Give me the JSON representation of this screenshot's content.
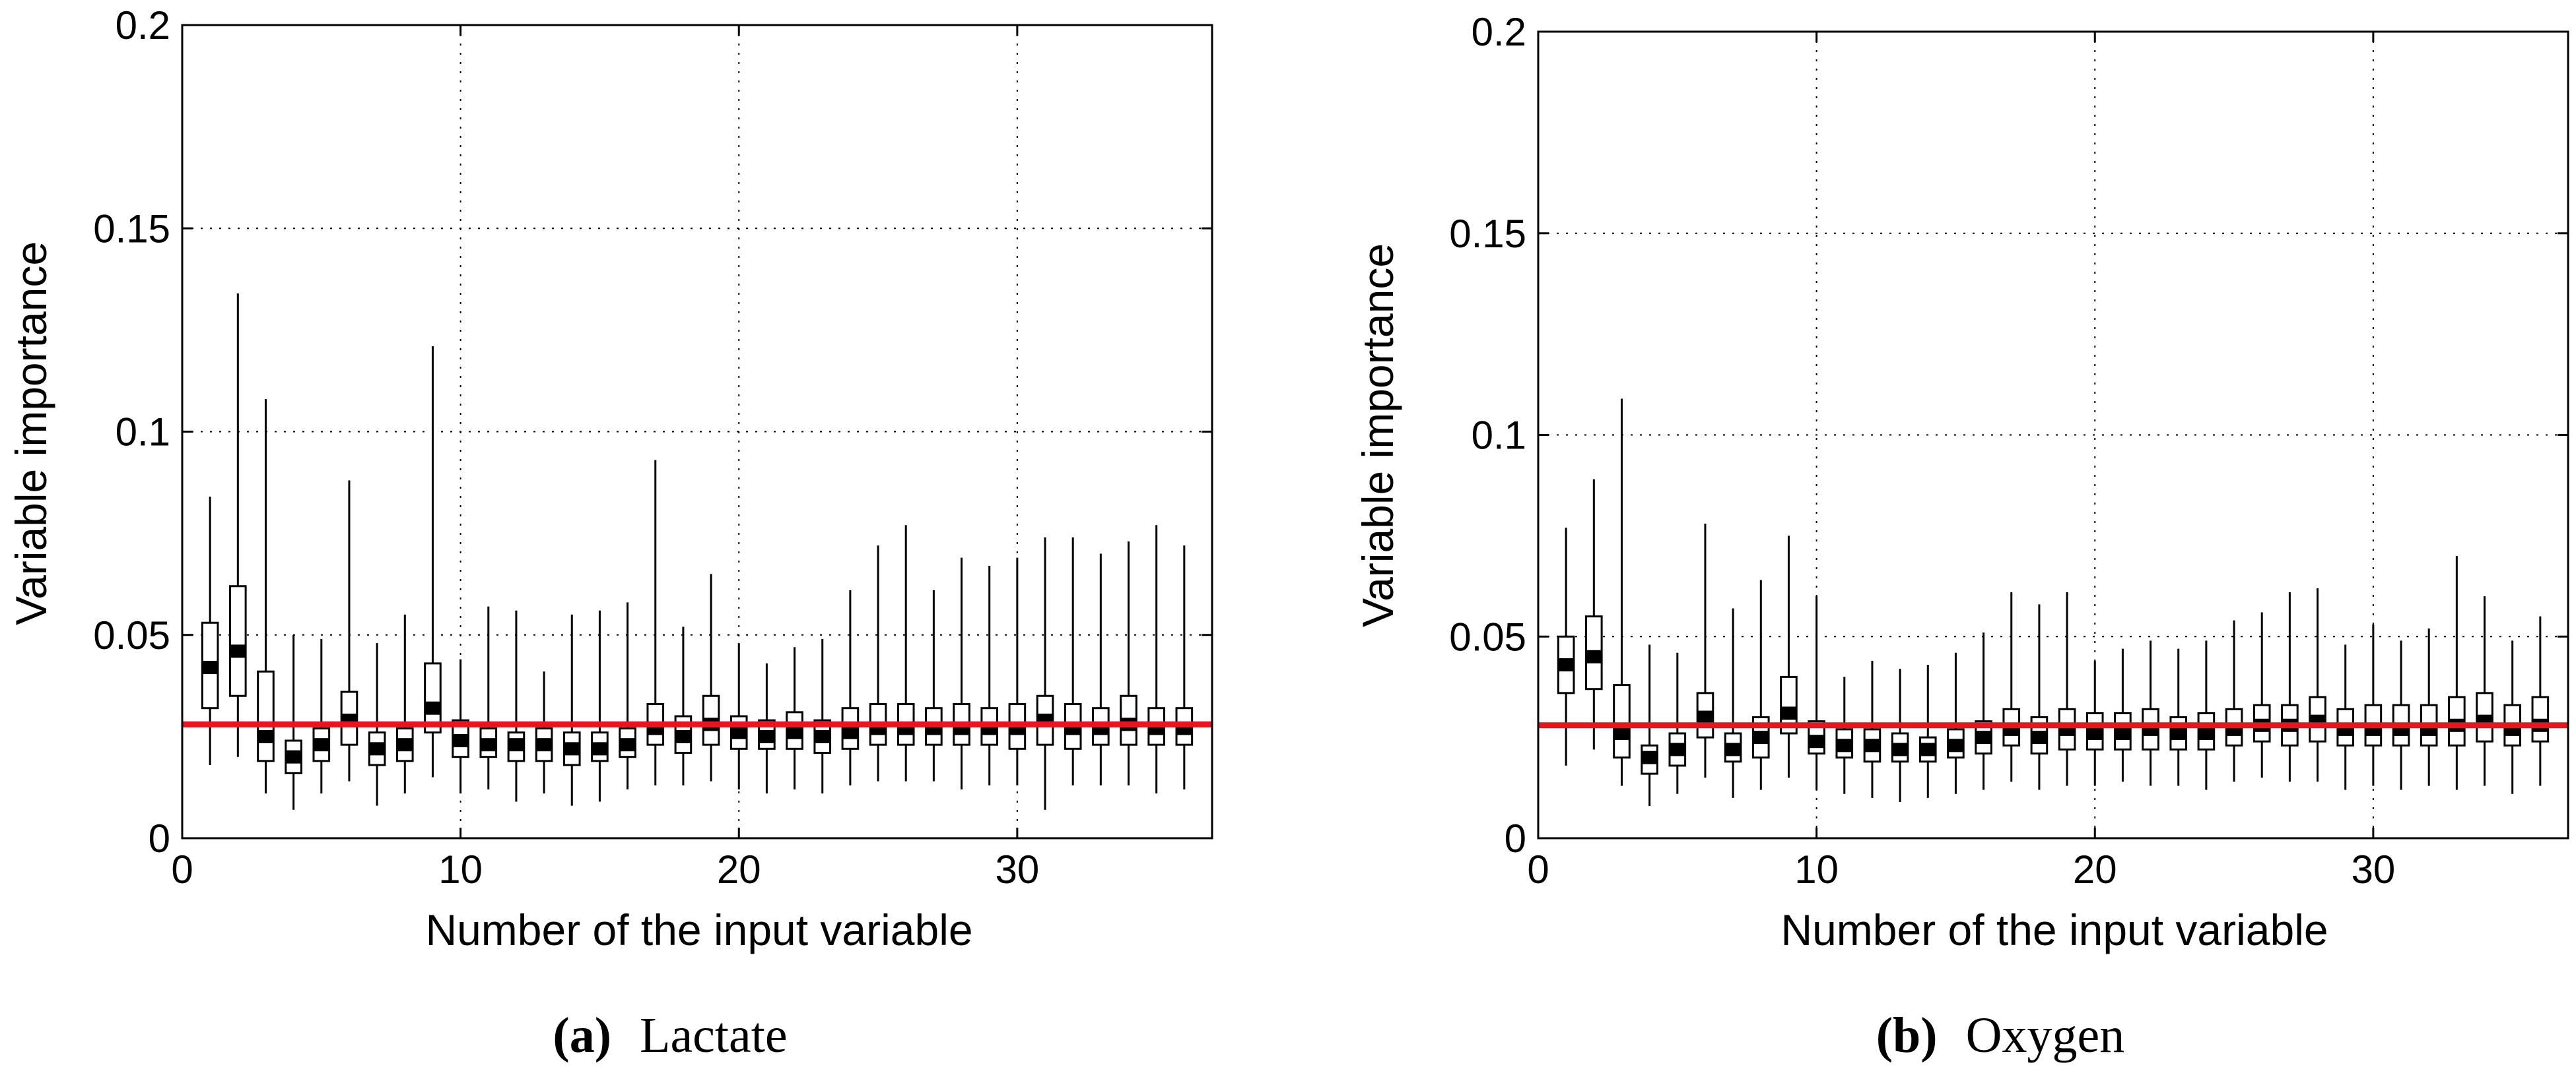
{
  "chart_data": [
    {
      "type": "boxplot",
      "caption_label": "(a)",
      "caption_text": "Lactate",
      "xlabel": "Number of the input variable",
      "ylabel": "Variable importance",
      "xlim": [
        0,
        37
      ],
      "ylim": [
        0,
        0.2
      ],
      "xticks": [
        0,
        10,
        20,
        30
      ],
      "yticks": [
        0,
        0.05,
        0.1,
        0.15,
        0.2
      ],
      "xtick_labels": [
        "0",
        "10",
        "20",
        "30"
      ],
      "ytick_labels": [
        "0",
        "0.05",
        "0.1",
        "0.15",
        "0.2"
      ],
      "grid": true,
      "reference_line": 0.028,
      "reference_color": "#e8141e",
      "boxes": [
        {
          "x": 1,
          "min": 0.018,
          "q1": 0.032,
          "median": 0.042,
          "q3": 0.053,
          "max": 0.084
        },
        {
          "x": 2,
          "min": 0.02,
          "q1": 0.035,
          "median": 0.046,
          "q3": 0.062,
          "max": 0.134
        },
        {
          "x": 3,
          "min": 0.011,
          "q1": 0.019,
          "median": 0.025,
          "q3": 0.041,
          "max": 0.108
        },
        {
          "x": 4,
          "min": 0.007,
          "q1": 0.016,
          "median": 0.02,
          "q3": 0.024,
          "max": 0.05
        },
        {
          "x": 5,
          "min": 0.011,
          "q1": 0.019,
          "median": 0.023,
          "q3": 0.027,
          "max": 0.049
        },
        {
          "x": 6,
          "min": 0.014,
          "q1": 0.023,
          "median": 0.029,
          "q3": 0.036,
          "max": 0.088
        },
        {
          "x": 7,
          "min": 0.008,
          "q1": 0.018,
          "median": 0.022,
          "q3": 0.026,
          "max": 0.048
        },
        {
          "x": 8,
          "min": 0.011,
          "q1": 0.019,
          "median": 0.023,
          "q3": 0.027,
          "max": 0.055
        },
        {
          "x": 9,
          "min": 0.015,
          "q1": 0.026,
          "median": 0.032,
          "q3": 0.043,
          "max": 0.121
        },
        {
          "x": 10,
          "min": 0.011,
          "q1": 0.02,
          "median": 0.024,
          "q3": 0.029,
          "max": 0.044
        },
        {
          "x": 11,
          "min": 0.012,
          "q1": 0.02,
          "median": 0.023,
          "q3": 0.027,
          "max": 0.057
        },
        {
          "x": 12,
          "min": 0.009,
          "q1": 0.019,
          "median": 0.023,
          "q3": 0.026,
          "max": 0.056
        },
        {
          "x": 13,
          "min": 0.011,
          "q1": 0.019,
          "median": 0.023,
          "q3": 0.027,
          "max": 0.041
        },
        {
          "x": 14,
          "min": 0.008,
          "q1": 0.018,
          "median": 0.022,
          "q3": 0.026,
          "max": 0.055
        },
        {
          "x": 15,
          "min": 0.009,
          "q1": 0.019,
          "median": 0.022,
          "q3": 0.026,
          "max": 0.056
        },
        {
          "x": 16,
          "min": 0.012,
          "q1": 0.02,
          "median": 0.023,
          "q3": 0.027,
          "max": 0.058
        },
        {
          "x": 17,
          "min": 0.013,
          "q1": 0.023,
          "median": 0.027,
          "q3": 0.033,
          "max": 0.093
        },
        {
          "x": 18,
          "min": 0.013,
          "q1": 0.021,
          "median": 0.025,
          "q3": 0.03,
          "max": 0.052
        },
        {
          "x": 19,
          "min": 0.014,
          "q1": 0.023,
          "median": 0.028,
          "q3": 0.035,
          "max": 0.065
        },
        {
          "x": 20,
          "min": 0.012,
          "q1": 0.022,
          "median": 0.026,
          "q3": 0.03,
          "max": 0.048
        },
        {
          "x": 21,
          "min": 0.011,
          "q1": 0.022,
          "median": 0.025,
          "q3": 0.029,
          "max": 0.043
        },
        {
          "x": 22,
          "min": 0.012,
          "q1": 0.022,
          "median": 0.026,
          "q3": 0.031,
          "max": 0.047
        },
        {
          "x": 23,
          "min": 0.011,
          "q1": 0.021,
          "median": 0.025,
          "q3": 0.029,
          "max": 0.049
        },
        {
          "x": 24,
          "min": 0.013,
          "q1": 0.022,
          "median": 0.026,
          "q3": 0.032,
          "max": 0.061
        },
        {
          "x": 25,
          "min": 0.014,
          "q1": 0.023,
          "median": 0.027,
          "q3": 0.033,
          "max": 0.072
        },
        {
          "x": 26,
          "min": 0.014,
          "q1": 0.023,
          "median": 0.027,
          "q3": 0.033,
          "max": 0.077
        },
        {
          "x": 27,
          "min": 0.014,
          "q1": 0.023,
          "median": 0.027,
          "q3": 0.032,
          "max": 0.061
        },
        {
          "x": 28,
          "min": 0.012,
          "q1": 0.023,
          "median": 0.027,
          "q3": 0.033,
          "max": 0.069
        },
        {
          "x": 29,
          "min": 0.013,
          "q1": 0.023,
          "median": 0.027,
          "q3": 0.032,
          "max": 0.067
        },
        {
          "x": 30,
          "min": 0.013,
          "q1": 0.022,
          "median": 0.027,
          "q3": 0.033,
          "max": 0.069
        },
        {
          "x": 31,
          "min": 0.007,
          "q1": 0.023,
          "median": 0.029,
          "q3": 0.035,
          "max": 0.074
        },
        {
          "x": 32,
          "min": 0.013,
          "q1": 0.022,
          "median": 0.027,
          "q3": 0.033,
          "max": 0.074
        },
        {
          "x": 33,
          "min": 0.013,
          "q1": 0.023,
          "median": 0.027,
          "q3": 0.032,
          "max": 0.07
        },
        {
          "x": 34,
          "min": 0.013,
          "q1": 0.023,
          "median": 0.028,
          "q3": 0.035,
          "max": 0.073
        },
        {
          "x": 35,
          "min": 0.011,
          "q1": 0.023,
          "median": 0.027,
          "q3": 0.032,
          "max": 0.077
        },
        {
          "x": 36,
          "min": 0.012,
          "q1": 0.023,
          "median": 0.027,
          "q3": 0.032,
          "max": 0.072
        }
      ]
    },
    {
      "type": "boxplot",
      "caption_label": "(b)",
      "caption_text": "Oxygen",
      "xlabel": "Number of the input variable",
      "ylabel": "Variable importance",
      "xlim": [
        0,
        37
      ],
      "ylim": [
        0,
        0.2
      ],
      "xticks": [
        0,
        10,
        20,
        30
      ],
      "yticks": [
        0,
        0.05,
        0.1,
        0.15,
        0.2
      ],
      "xtick_labels": [
        "0",
        "10",
        "20",
        "30"
      ],
      "ytick_labels": [
        "0",
        "0.05",
        "0.1",
        "0.15",
        "0.2"
      ],
      "grid": true,
      "reference_line": 0.028,
      "reference_color": "#e8141e",
      "boxes": [
        {
          "x": 1,
          "min": 0.018,
          "q1": 0.036,
          "median": 0.043,
          "q3": 0.05,
          "max": 0.077
        },
        {
          "x": 2,
          "min": 0.022,
          "q1": 0.037,
          "median": 0.045,
          "q3": 0.055,
          "max": 0.089
        },
        {
          "x": 3,
          "min": 0.013,
          "q1": 0.02,
          "median": 0.026,
          "q3": 0.038,
          "max": 0.109
        },
        {
          "x": 4,
          "min": 0.008,
          "q1": 0.016,
          "median": 0.02,
          "q3": 0.023,
          "max": 0.048
        },
        {
          "x": 5,
          "min": 0.011,
          "q1": 0.018,
          "median": 0.022,
          "q3": 0.026,
          "max": 0.046
        },
        {
          "x": 6,
          "min": 0.015,
          "q1": 0.025,
          "median": 0.03,
          "q3": 0.036,
          "max": 0.078
        },
        {
          "x": 7,
          "min": 0.01,
          "q1": 0.019,
          "median": 0.022,
          "q3": 0.026,
          "max": 0.057
        },
        {
          "x": 8,
          "min": 0.012,
          "q1": 0.02,
          "median": 0.025,
          "q3": 0.03,
          "max": 0.064
        },
        {
          "x": 9,
          "min": 0.015,
          "q1": 0.026,
          "median": 0.031,
          "q3": 0.04,
          "max": 0.075
        },
        {
          "x": 10,
          "min": 0.012,
          "q1": 0.021,
          "median": 0.024,
          "q3": 0.029,
          "max": 0.06
        },
        {
          "x": 11,
          "min": 0.011,
          "q1": 0.02,
          "median": 0.023,
          "q3": 0.027,
          "max": 0.04
        },
        {
          "x": 12,
          "min": 0.01,
          "q1": 0.019,
          "median": 0.023,
          "q3": 0.027,
          "max": 0.044
        },
        {
          "x": 13,
          "min": 0.009,
          "q1": 0.019,
          "median": 0.022,
          "q3": 0.026,
          "max": 0.042
        },
        {
          "x": 14,
          "min": 0.01,
          "q1": 0.019,
          "median": 0.022,
          "q3": 0.025,
          "max": 0.043
        },
        {
          "x": 15,
          "min": 0.011,
          "q1": 0.02,
          "median": 0.023,
          "q3": 0.027,
          "max": 0.046
        },
        {
          "x": 16,
          "min": 0.012,
          "q1": 0.021,
          "median": 0.025,
          "q3": 0.029,
          "max": 0.051
        },
        {
          "x": 17,
          "min": 0.014,
          "q1": 0.023,
          "median": 0.027,
          "q3": 0.032,
          "max": 0.061
        },
        {
          "x": 18,
          "min": 0.012,
          "q1": 0.021,
          "median": 0.025,
          "q3": 0.03,
          "max": 0.058
        },
        {
          "x": 19,
          "min": 0.013,
          "q1": 0.022,
          "median": 0.027,
          "q3": 0.032,
          "max": 0.061
        },
        {
          "x": 20,
          "min": 0.013,
          "q1": 0.022,
          "median": 0.026,
          "q3": 0.031,
          "max": 0.044
        },
        {
          "x": 21,
          "min": 0.014,
          "q1": 0.022,
          "median": 0.026,
          "q3": 0.031,
          "max": 0.047
        },
        {
          "x": 22,
          "min": 0.013,
          "q1": 0.022,
          "median": 0.027,
          "q3": 0.032,
          "max": 0.049
        },
        {
          "x": 23,
          "min": 0.013,
          "q1": 0.022,
          "median": 0.026,
          "q3": 0.03,
          "max": 0.047
        },
        {
          "x": 24,
          "min": 0.012,
          "q1": 0.022,
          "median": 0.026,
          "q3": 0.031,
          "max": 0.049
        },
        {
          "x": 25,
          "min": 0.014,
          "q1": 0.023,
          "median": 0.027,
          "q3": 0.032,
          "max": 0.054
        },
        {
          "x": 26,
          "min": 0.015,
          "q1": 0.024,
          "median": 0.028,
          "q3": 0.033,
          "max": 0.056
        },
        {
          "x": 27,
          "min": 0.014,
          "q1": 0.023,
          "median": 0.028,
          "q3": 0.033,
          "max": 0.061
        },
        {
          "x": 28,
          "min": 0.014,
          "q1": 0.024,
          "median": 0.029,
          "q3": 0.035,
          "max": 0.062
        },
        {
          "x": 29,
          "min": 0.012,
          "q1": 0.023,
          "median": 0.027,
          "q3": 0.032,
          "max": 0.048
        },
        {
          "x": 30,
          "min": 0.013,
          "q1": 0.023,
          "median": 0.027,
          "q3": 0.033,
          "max": 0.053
        },
        {
          "x": 31,
          "min": 0.012,
          "q1": 0.023,
          "median": 0.027,
          "q3": 0.033,
          "max": 0.049
        },
        {
          "x": 32,
          "min": 0.013,
          "q1": 0.023,
          "median": 0.027,
          "q3": 0.033,
          "max": 0.052
        },
        {
          "x": 33,
          "min": 0.012,
          "q1": 0.023,
          "median": 0.028,
          "q3": 0.035,
          "max": 0.07
        },
        {
          "x": 34,
          "min": 0.013,
          "q1": 0.024,
          "median": 0.029,
          "q3": 0.036,
          "max": 0.06
        },
        {
          "x": 35,
          "min": 0.011,
          "q1": 0.023,
          "median": 0.027,
          "q3": 0.033,
          "max": 0.049
        },
        {
          "x": 36,
          "min": 0.013,
          "q1": 0.024,
          "median": 0.028,
          "q3": 0.035,
          "max": 0.055
        }
      ]
    }
  ]
}
